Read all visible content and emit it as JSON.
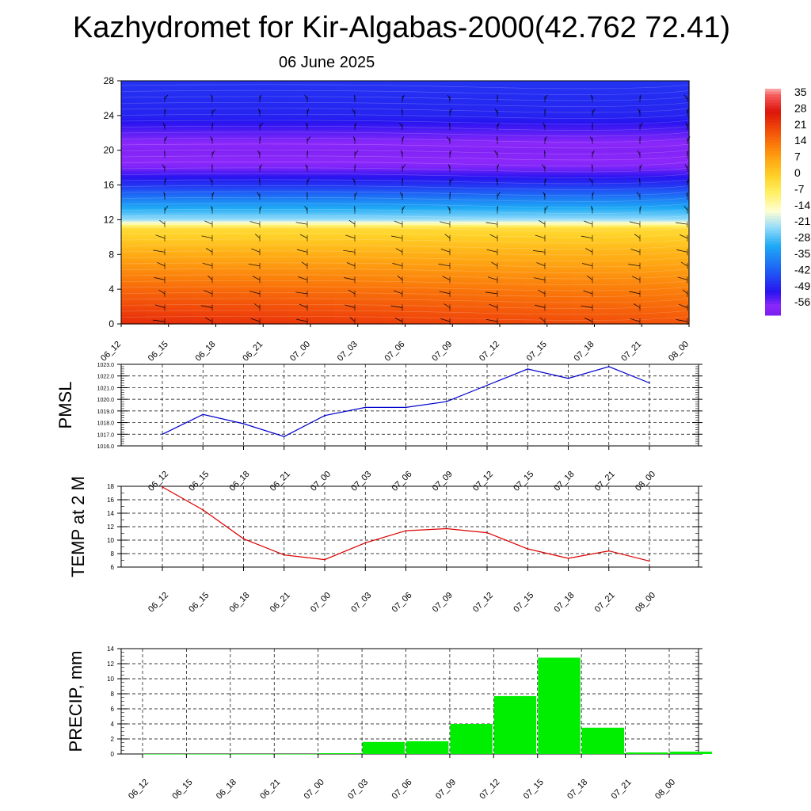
{
  "title": "Kazhydromet for Kir-Algabas-2000(42.762 72.41)",
  "date": "06 June 2025",
  "colors": {
    "pmsl_line": "#0000cc",
    "temp_line": "#dd0000",
    "precip_bar": "#00ee00",
    "grid": "#000000"
  },
  "chart_data": [
    {
      "id": "cross-section",
      "type": "heatmap",
      "x_ticks": [
        "06_12",
        "06_15",
        "06_18",
        "06_21",
        "07_00",
        "07_03",
        "07_06",
        "07_09",
        "07_12",
        "07_15",
        "07_18",
        "07_21",
        "08_00"
      ],
      "y_ticks": [
        0,
        4,
        8,
        12,
        16,
        20,
        24,
        28
      ],
      "ylim": [
        0,
        28
      ],
      "colorbar": {
        "labels": [
          "35",
          "28",
          "21",
          "14",
          "7",
          "0",
          "-7",
          "-14",
          "-21",
          "-28",
          "-35",
          "-42",
          "-49",
          "-56"
        ],
        "range": [
          -60,
          38
        ]
      },
      "temperature_profile": [
        {
          "level": 0,
          "value": 21
        },
        {
          "level": 4,
          "value": 14
        },
        {
          "level": 8,
          "value": 6
        },
        {
          "level": 11,
          "value": -2
        },
        {
          "level": 12,
          "value": -22
        },
        {
          "level": 14,
          "value": -34
        },
        {
          "level": 16,
          "value": -46
        },
        {
          "level": 18,
          "value": -55
        },
        {
          "level": 20,
          "value": -58
        },
        {
          "level": 22,
          "value": -53
        },
        {
          "level": 24,
          "value": -48
        },
        {
          "level": 28,
          "value": -46
        }
      ],
      "wind_barbs": true
    },
    {
      "id": "pmsl",
      "type": "line",
      "ylabel": "PMSL",
      "x": [
        "06_12",
        "06_15",
        "06_18",
        "06_21",
        "07_00",
        "07_03",
        "07_06",
        "07_09",
        "07_12",
        "07_15",
        "07_18",
        "07_21",
        "08_00"
      ],
      "values": [
        1017.0,
        1018.7,
        1017.9,
        1016.8,
        1018.6,
        1019.3,
        1019.3,
        1019.8,
        1021.2,
        1022.6,
        1021.8,
        1022.8,
        1021.4
      ],
      "yticks": [
        "1016.0",
        "1017.0",
        "1018.0",
        "1019.0",
        "1020.0",
        "1021.0",
        "1022.0",
        "1023.0"
      ],
      "ylim": [
        1016,
        1023
      ],
      "grid": true
    },
    {
      "id": "temp",
      "type": "line",
      "ylabel": "TEMP at 2 M",
      "x": [
        "06_12",
        "06_15",
        "06_18",
        "06_21",
        "07_00",
        "07_03",
        "07_06",
        "07_09",
        "07_12",
        "07_15",
        "07_18",
        "07_21",
        "08_00"
      ],
      "values": [
        17.9,
        14.5,
        10.2,
        7.8,
        7.1,
        9.6,
        11.4,
        11.7,
        11.1,
        8.7,
        7.3,
        8.4,
        6.9
      ],
      "yticks": [
        "6",
        "8",
        "10",
        "12",
        "14",
        "16",
        "18"
      ],
      "ylim": [
        6,
        18
      ],
      "grid": true
    },
    {
      "id": "precip",
      "type": "bar",
      "ylabel": "PRECIP, mm",
      "x": [
        "06_12",
        "06_15",
        "06_18",
        "06_21",
        "07_00",
        "07_03",
        "07_06",
        "07_09",
        "07_12",
        "07_15",
        "07_18",
        "07_21",
        "08_00"
      ],
      "values": [
        0,
        0,
        0,
        0,
        0.1,
        1.6,
        1.7,
        4.0,
        7.7,
        12.8,
        3.5,
        0.2,
        0.3
      ],
      "yticks": [
        "0",
        "2",
        "4",
        "6",
        "8",
        "10",
        "12",
        "14"
      ],
      "ylim": [
        0,
        14
      ],
      "grid": true
    }
  ]
}
